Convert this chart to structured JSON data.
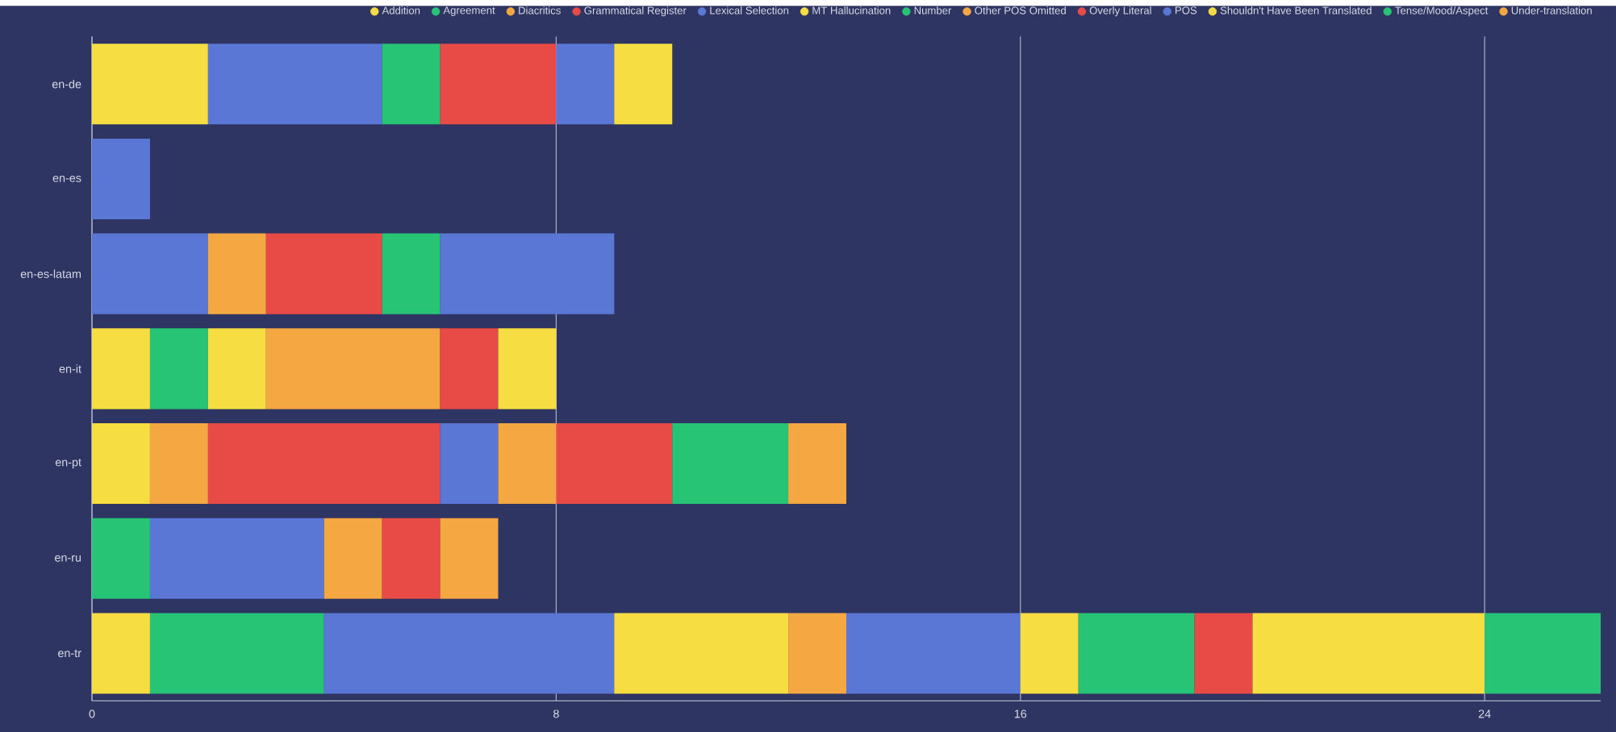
{
  "chart_data": {
    "type": "bar",
    "orientation": "horizontal",
    "stacked": true,
    "categories": [
      "en-de",
      "en-es",
      "en-es-latam",
      "en-it",
      "en-pt",
      "en-ru",
      "en-tr"
    ],
    "series": [
      {
        "name": "Addition",
        "color": "#f5dd42",
        "values": [
          2,
          null,
          null,
          1,
          1,
          null,
          1
        ]
      },
      {
        "name": "Agreement",
        "color": "#27c476",
        "values": [
          null,
          null,
          null,
          1,
          null,
          1,
          3
        ]
      },
      {
        "name": "Diacritics",
        "color": "#f5a742",
        "values": [
          null,
          null,
          null,
          null,
          1,
          null,
          null
        ]
      },
      {
        "name": "Grammatical Register",
        "color": "#e84b45",
        "values": [
          null,
          null,
          null,
          null,
          4,
          null,
          null
        ]
      },
      {
        "name": "Lexical Selection",
        "color": "#5b77d6",
        "values": [
          3,
          1,
          2,
          null,
          1,
          3,
          5
        ]
      },
      {
        "name": "MT Hallucination",
        "color": "#f5dd42",
        "values": [
          null,
          null,
          null,
          1,
          null,
          null,
          3
        ]
      },
      {
        "name": "Number",
        "color": "#27c476",
        "values": [
          1,
          null,
          null,
          null,
          null,
          null,
          null
        ]
      },
      {
        "name": "Other POS Omitted",
        "color": "#f5a742",
        "values": [
          null,
          null,
          1,
          3,
          1,
          1,
          1
        ]
      },
      {
        "name": "Overly Literal",
        "color": "#e84b45",
        "values": [
          2,
          null,
          2,
          1,
          2,
          1,
          null
        ]
      },
      {
        "name": "POS",
        "color": "#5b77d6",
        "values": [
          1,
          null,
          null,
          null,
          null,
          null,
          3
        ]
      },
      {
        "name": "Shouldn't Have Been Translated",
        "color": "#f5dd42",
        "values": [
          1,
          null,
          null,
          1,
          null,
          null,
          1
        ]
      },
      {
        "name": "Tense/Mood/Aspect",
        "color": "#27c476",
        "values": [
          null,
          null,
          1,
          null,
          2,
          null,
          2
        ]
      },
      {
        "name": "Under-translation",
        "color": "#f5a742",
        "values": [
          null,
          null,
          null,
          null,
          1,
          1,
          null
        ]
      },
      {
        "color": "#e84b45",
        "values": [
          null,
          null,
          null,
          null,
          null,
          null,
          1
        ]
      },
      {
        "color": "#5b77d6",
        "values": [
          null,
          null,
          3,
          null,
          null,
          null,
          null
        ]
      },
      {
        "color": "#f5dd42",
        "values": [
          null,
          null,
          null,
          null,
          null,
          null,
          4
        ]
      },
      {
        "color": "#27c476",
        "values": [
          null,
          null,
          null,
          null,
          null,
          null,
          2
        ]
      }
    ],
    "xlim": [
      0,
      26
    ],
    "xticks": [
      0,
      8,
      16,
      24
    ],
    "grid": "x",
    "legend": "top right"
  }
}
